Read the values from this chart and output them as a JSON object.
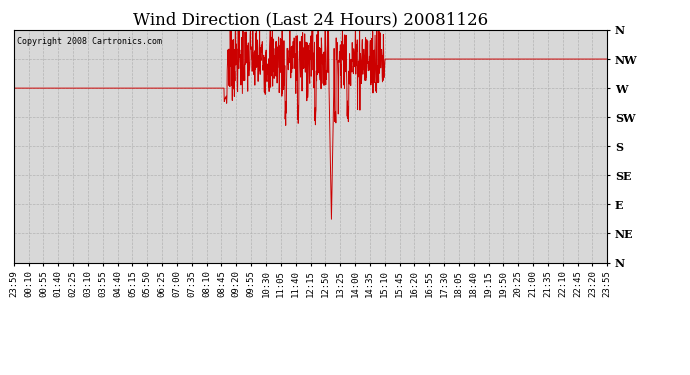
{
  "title": "Wind Direction (Last 24 Hours) 20081126",
  "copyright_text": "Copyright 2008 Cartronics.com",
  "line_color": "#cc0000",
  "bg_color": "#ffffff",
  "grid_color": "#b0b0b0",
  "plot_bg_color": "#d8d8d8",
  "ytick_labels": [
    "N",
    "NW",
    "W",
    "SW",
    "S",
    "SE",
    "E",
    "NE",
    "N"
  ],
  "ytick_values": [
    360,
    315,
    270,
    225,
    180,
    135,
    90,
    45,
    0
  ],
  "xtick_labels": [
    "23:59",
    "00:10",
    "00:55",
    "01:40",
    "02:25",
    "03:10",
    "03:55",
    "04:40",
    "05:15",
    "05:50",
    "06:25",
    "07:00",
    "07:35",
    "08:10",
    "08:45",
    "09:20",
    "09:55",
    "10:30",
    "11:05",
    "11:40",
    "12:15",
    "12:50",
    "13:25",
    "14:00",
    "14:35",
    "15:10",
    "15:45",
    "16:20",
    "16:55",
    "17:30",
    "18:05",
    "18:40",
    "19:15",
    "19:50",
    "20:25",
    "21:00",
    "21:35",
    "22:10",
    "22:45",
    "23:20",
    "23:55"
  ],
  "ylim": [
    0,
    360
  ],
  "figsize": [
    6.9,
    3.75
  ],
  "dpi": 100,
  "title_fontsize": 12,
  "label_fontsize": 8,
  "tick_fontsize": 6.5
}
